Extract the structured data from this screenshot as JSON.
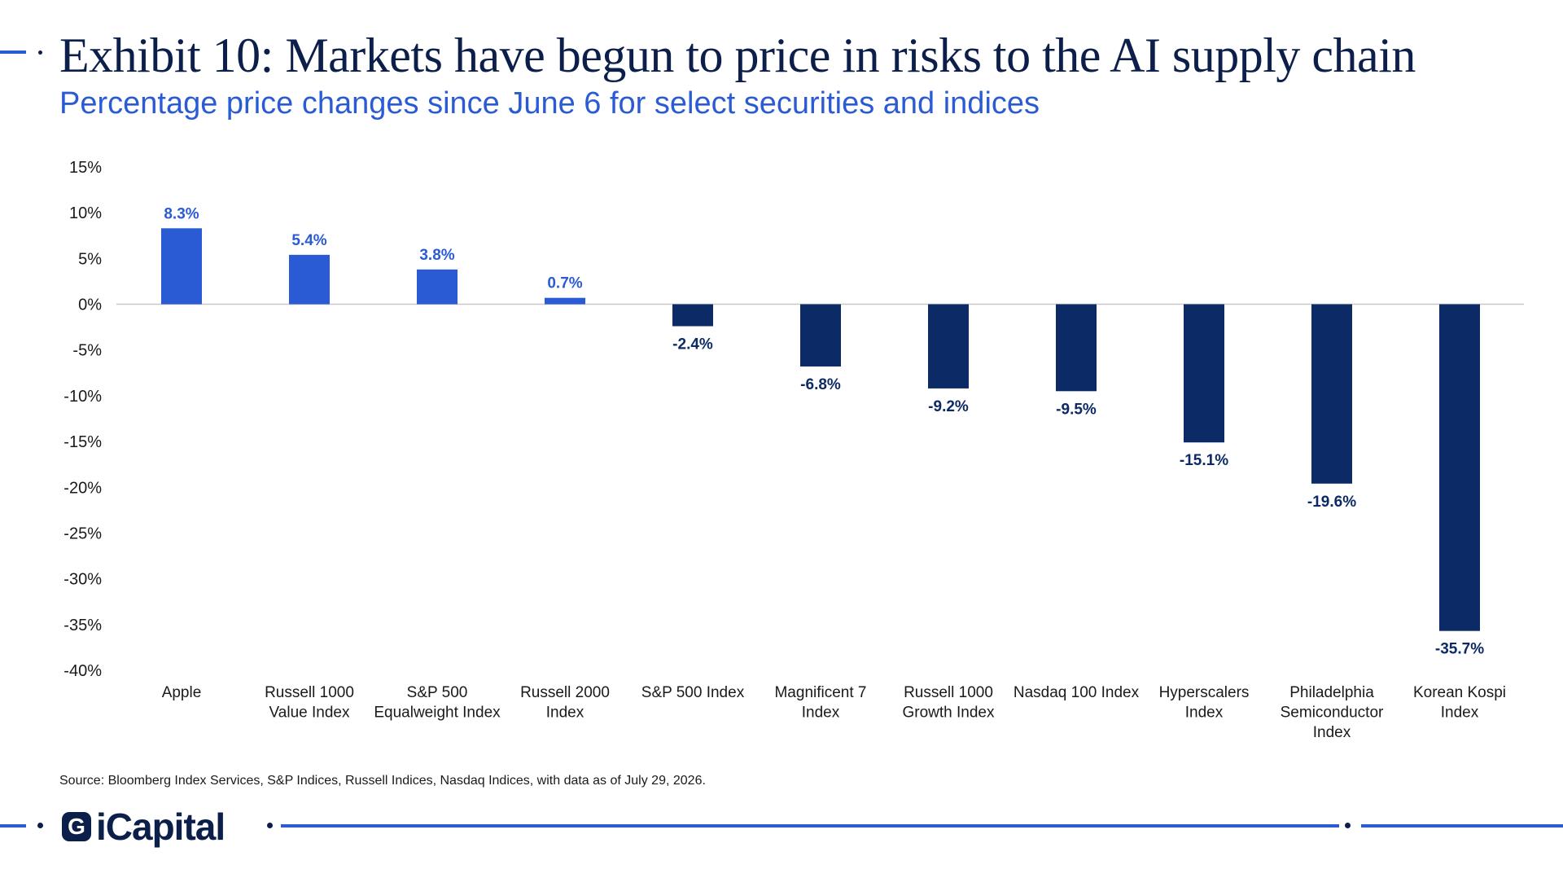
{
  "header": {
    "title": "Exhibit 10: Markets have begun to price in risks to the AI supply chain",
    "subtitle": "Percentage price changes since June 6 for select securities and indices"
  },
  "chart_data": {
    "type": "bar",
    "categories": [
      [
        "Apple"
      ],
      [
        "Russell 1000",
        "Value Index"
      ],
      [
        "S&P 500",
        "Equalweight Index"
      ],
      [
        "Russell 2000",
        "Index"
      ],
      [
        "S&P 500 Index"
      ],
      [
        "Magnificent 7",
        "Index"
      ],
      [
        "Russell 1000",
        "Growth Index"
      ],
      [
        "Nasdaq 100 Index"
      ],
      [
        "Hyperscalers",
        "Index"
      ],
      [
        "Philadelphia",
        "Semiconductor",
        "Index"
      ],
      [
        "Korean Kospi",
        "Index"
      ]
    ],
    "values": [
      8.3,
      5.4,
      3.8,
      0.7,
      -2.4,
      -6.8,
      -9.2,
      -9.5,
      -15.1,
      -19.6,
      -35.7
    ],
    "data_labels": [
      "8.3%",
      "5.4%",
      "3.8%",
      "0.7%",
      "-2.4%",
      "-6.8%",
      "-9.2%",
      "-9.5%",
      "-15.1%",
      "-19.6%",
      "-35.7%"
    ],
    "ylim": [
      -40,
      15
    ],
    "yticks": [
      15,
      10,
      5,
      0,
      -5,
      -10,
      -15,
      -20,
      -25,
      -30,
      -35,
      -40
    ],
    "ytick_labels": [
      "15%",
      "10%",
      "5%",
      "0%",
      "-5%",
      "-10%",
      "-15%",
      "-20%",
      "-25%",
      "-30%",
      "-35%",
      "-40%"
    ],
    "positive_color": "#2b5bd4",
    "negative_color": "#0c2a66",
    "grid": false
  },
  "source": "Source: Bloomberg Index Services, S&P Indices, Russell Indices, Nasdaq Indices, with data as of July 29, 2026.",
  "footer": {
    "logo_text": "iCapital",
    "logo_glyph": "G",
    "accent_color": "#2b5bd4"
  }
}
